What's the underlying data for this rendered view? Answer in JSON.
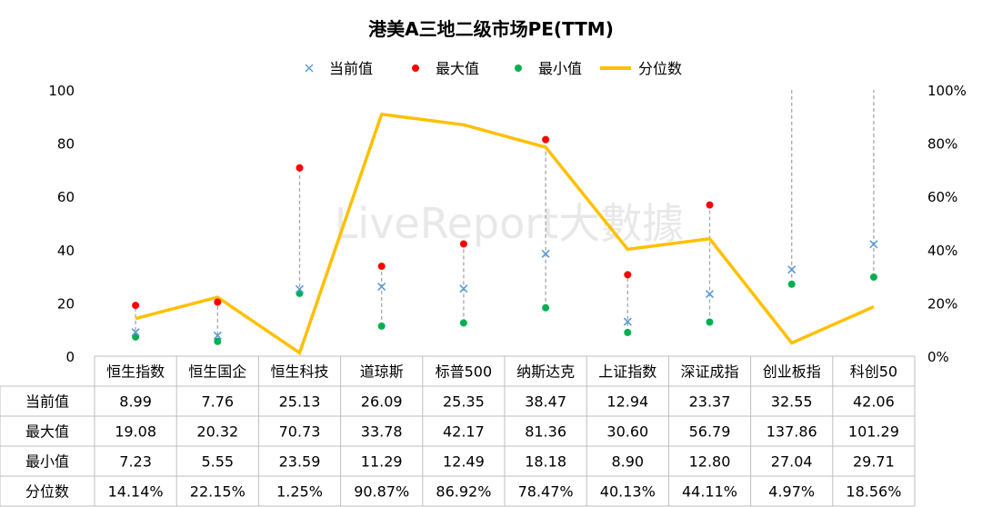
{
  "chart_data": {
    "type": "line",
    "title": "港美A三地二级市场PE(TTM)",
    "watermark": "LiveReport大數據",
    "categories": [
      "恒生指数",
      "恒生国企",
      "恒生科技",
      "道琼斯",
      "标普500",
      "纳斯达克",
      "上证指数",
      "深证成指",
      "创业板指",
      "科创50"
    ],
    "series": [
      {
        "name": "当前值",
        "axis": "left",
        "marker": "x",
        "color": "#5b9bd5",
        "values": [
          8.99,
          7.76,
          25.13,
          26.09,
          25.35,
          38.47,
          12.94,
          23.37,
          32.55,
          42.06
        ]
      },
      {
        "name": "最大值",
        "axis": "left",
        "marker": "dot",
        "color": "#ff0000",
        "values": [
          19.08,
          20.32,
          70.73,
          33.78,
          42.17,
          81.36,
          30.6,
          56.79,
          137.86,
          101.29
        ]
      },
      {
        "name": "最小值",
        "axis": "left",
        "marker": "dot",
        "color": "#00b050",
        "values": [
          7.23,
          5.55,
          23.59,
          11.29,
          12.49,
          18.18,
          8.9,
          12.8,
          27.04,
          29.71
        ]
      },
      {
        "name": "分位数",
        "axis": "right",
        "marker": "line",
        "color": "#ffc000",
        "values": [
          14.14,
          22.15,
          1.25,
          90.87,
          86.92,
          78.47,
          40.13,
          44.11,
          4.97,
          18.56
        ]
      }
    ],
    "table": {
      "rows": [
        {
          "label": "当前值",
          "cells": [
            "8.99",
            "7.76",
            "25.13",
            "26.09",
            "25.35",
            "38.47",
            "12.94",
            "23.37",
            "32.55",
            "42.06"
          ]
        },
        {
          "label": "最大值",
          "cells": [
            "19.08",
            "20.32",
            "70.73",
            "33.78",
            "42.17",
            "81.36",
            "30.60",
            "56.79",
            "137.86",
            "101.29"
          ]
        },
        {
          "label": "最小值",
          "cells": [
            "7.23",
            "5.55",
            "23.59",
            "11.29",
            "12.49",
            "18.18",
            "8.90",
            "12.80",
            "27.04",
            "29.71"
          ]
        },
        {
          "label": "分位数",
          "cells": [
            "14.14%",
            "22.15%",
            "1.25%",
            "90.87%",
            "86.92%",
            "78.47%",
            "40.13%",
            "44.11%",
            "4.97%",
            "18.56%"
          ]
        }
      ]
    },
    "y_left": {
      "range": [
        0,
        100
      ],
      "ticks": [
        "0",
        "20",
        "40",
        "60",
        "80",
        "100"
      ]
    },
    "y_right": {
      "range": [
        0,
        100
      ],
      "ticks": [
        "0%",
        "20%",
        "40%",
        "60%",
        "80%",
        "100%"
      ]
    },
    "grid": false,
    "legend_position": "top",
    "range_connector": "dashed-gray"
  }
}
